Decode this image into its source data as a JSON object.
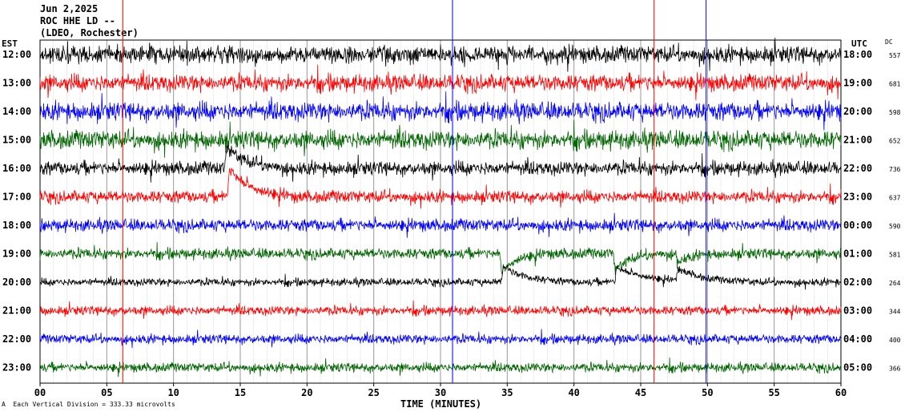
{
  "header": {
    "date": "Jun 2,2025",
    "station": "ROC HHE LD --",
    "network": "(LDEO, Rochester)"
  },
  "labels": {
    "left_tz": "EST",
    "right_tz": "UTC",
    "dc": "DC",
    "x_axis_title": "TIME (MINUTES)",
    "scale_note": "Each Vertical Division = 333.33 microvolts",
    "scale_mark": "A"
  },
  "colors": {
    "trace_cycle": [
      "#000000",
      "#ff0000",
      "#0000ff",
      "#006400"
    ],
    "gridline": "#b0b0b0",
    "event_line_red": "#ff0000",
    "event_line_blue": "#0000ff"
  },
  "chart_data": {
    "type": "line",
    "title": "ROC HHE LD --",
    "xlabel": "TIME (MINUTES)",
    "xlim": [
      0,
      60
    ],
    "x_ticks": [
      "00",
      "05",
      "10",
      "15",
      "20",
      "25",
      "30",
      "35",
      "40",
      "45",
      "50",
      "55",
      "60"
    ],
    "grid": true,
    "rows": [
      {
        "est": "12:00",
        "utc": "18:00",
        "dc": "557",
        "color": "#000000",
        "noise": 11,
        "events": []
      },
      {
        "est": "13:00",
        "utc": "19:00",
        "dc": "681",
        "color": "#ff0000",
        "noise": 11,
        "events": []
      },
      {
        "est": "14:00",
        "utc": "20:00",
        "dc": "598",
        "color": "#0000ff",
        "noise": 12,
        "events": []
      },
      {
        "est": "15:00",
        "utc": "21:00",
        "dc": "652",
        "color": "#006400",
        "noise": 12,
        "events": []
      },
      {
        "est": "16:00",
        "utc": "22:00",
        "dc": "736",
        "color": "#000000",
        "noise": 9,
        "events": [
          {
            "t": 14.0,
            "amp": 25,
            "dur": 1.5
          }
        ]
      },
      {
        "est": "17:00",
        "utc": "23:00",
        "dc": "637",
        "color": "#ff0000",
        "noise": 8,
        "events": [
          {
            "t": 14.2,
            "amp": 35,
            "dur": 1.5
          }
        ]
      },
      {
        "est": "18:00",
        "utc": "00:00",
        "dc": "590",
        "color": "#0000ff",
        "noise": 8,
        "events": []
      },
      {
        "est": "19:00",
        "utc": "01:00",
        "dc": "581",
        "color": "#006400",
        "noise": 7,
        "events": [
          {
            "t": 34.6,
            "amp": -25,
            "dur": 1.0
          },
          {
            "t": 43.1,
            "amp": -22,
            "dur": 1.0
          },
          {
            "t": 47.8,
            "amp": -10,
            "dur": 1.0
          }
        ]
      },
      {
        "est": "20:00",
        "utc": "02:00",
        "dc": "264",
        "color": "#000000",
        "noise": 5,
        "events": [
          {
            "t": 34.7,
            "amp": 20,
            "dur": 1.6
          },
          {
            "t": 43.2,
            "amp": 18,
            "dur": 2.2
          },
          {
            "t": 47.8,
            "amp": 15,
            "dur": 1.8
          }
        ]
      },
      {
        "est": "21:00",
        "utc": "03:00",
        "dc": "344",
        "color": "#ff0000",
        "noise": 6,
        "events": []
      },
      {
        "est": "22:00",
        "utc": "04:00",
        "dc": "400",
        "color": "#0000ff",
        "noise": 6,
        "events": []
      },
      {
        "est": "23:00",
        "utc": "05:00",
        "dc": "366",
        "color": "#006400",
        "noise": 6,
        "events": []
      }
    ],
    "event_lines": [
      {
        "t": 6.2,
        "color": "#ff0000"
      },
      {
        "t": 30.9,
        "color": "#0000ff"
      },
      {
        "t": 46.0,
        "color": "#ff0000"
      },
      {
        "t": 49.9,
        "color": "#0000ff"
      }
    ],
    "scale_microvolts_per_division": 333.33
  }
}
